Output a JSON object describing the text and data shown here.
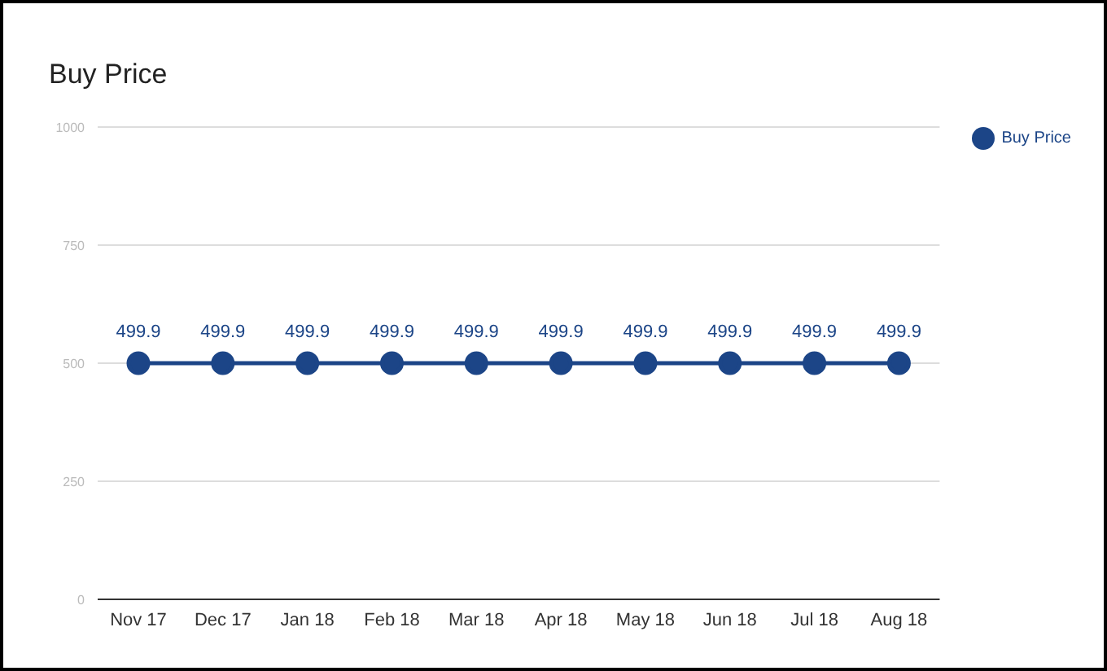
{
  "chart_data": {
    "type": "line",
    "title": "Buy Price",
    "categories": [
      "Nov 17",
      "Dec 17",
      "Jan 18",
      "Feb 18",
      "Mar 18",
      "Apr 18",
      "May 18",
      "Jun 18",
      "Jul 18",
      "Aug 18"
    ],
    "series": [
      {
        "name": "Buy Price",
        "color": "#1c4587",
        "values": [
          499.9,
          499.9,
          499.9,
          499.9,
          499.9,
          499.9,
          499.9,
          499.9,
          499.9,
          499.9
        ]
      }
    ],
    "ylim": [
      0,
      1000
    ],
    "yticks": [
      0,
      250,
      500,
      750,
      1000
    ],
    "grid": "y",
    "legend": "top right",
    "marker": "circle",
    "data_labels": true
  }
}
